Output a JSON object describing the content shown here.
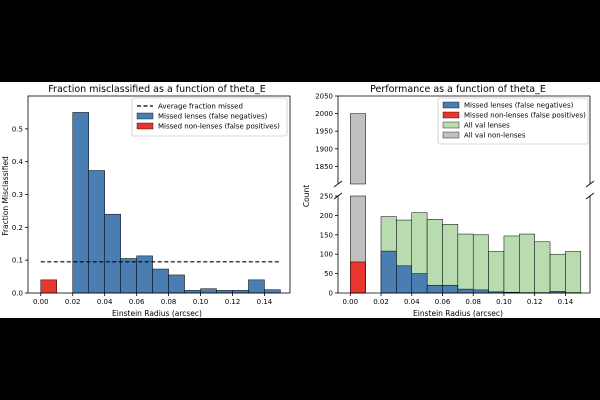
{
  "chart_data": [
    {
      "type": "bar",
      "title": "Fraction misclassified as a function of theta_E",
      "xlabel": "Einstein Radius (arcsec)",
      "ylabel": "Fraction Misclassified",
      "xlim": [
        -0.008,
        0.156
      ],
      "ylim": [
        0,
        0.6
      ],
      "xticks": [
        "0.00",
        "0.02",
        "0.04",
        "0.06",
        "0.08",
        "0.10",
        "0.12",
        "0.14"
      ],
      "xtick_values": [
        0,
        0.02,
        0.04,
        0.06,
        0.08,
        0.1,
        0.12,
        0.14
      ],
      "yticks": [
        "0.0",
        "0.1",
        "0.2",
        "0.3",
        "0.4",
        "0.5"
      ],
      "ytick_values": [
        0,
        0.1,
        0.2,
        0.3,
        0.4,
        0.5
      ],
      "bin_width": 0.01,
      "series": [
        {
          "name": "Missed lenses (false negatives)",
          "color": "#4a7eb3",
          "bin_starts": [
            0.02,
            0.03,
            0.04,
            0.05,
            0.06,
            0.07,
            0.08,
            0.09,
            0.1,
            0.11,
            0.12,
            0.13,
            0.14
          ],
          "values": [
            0.55,
            0.373,
            0.24,
            0.105,
            0.113,
            0.073,
            0.055,
            0.008,
            0.013,
            0.008,
            0.008,
            0.04,
            0.01
          ]
        },
        {
          "name": "Missed non-lenses (false positives)",
          "color": "#e8372e",
          "bin_starts": [
            0.0
          ],
          "values": [
            0.04
          ]
        }
      ],
      "hline": {
        "name": "Average fraction missed",
        "value": 0.095,
        "x_range": [
          0.0,
          0.15
        ]
      },
      "legend": "top-right"
    },
    {
      "type": "bar",
      "title": "Performance as a function of theta_E",
      "xlabel": "Einstein Radius (arcsec)",
      "ylabel": "Count",
      "xlim": [
        -0.008,
        0.156
      ],
      "broken_axis": true,
      "ylim_top": [
        1800,
        2050
      ],
      "ylim_bottom": [
        0,
        250
      ],
      "yticks_top": [
        "1850",
        "1900",
        "1950",
        "2000",
        "2050"
      ],
      "ytick_values_top": [
        1850,
        1900,
        1950,
        2000,
        2050
      ],
      "yticks_bottom": [
        "0",
        "50",
        "100",
        "150",
        "200",
        "250"
      ],
      "ytick_values_bottom": [
        0,
        50,
        100,
        150,
        200,
        250
      ],
      "xticks": [
        "0.00",
        "0.02",
        "0.04",
        "0.06",
        "0.08",
        "0.10",
        "0.12",
        "0.14"
      ],
      "xtick_values": [
        0,
        0.02,
        0.04,
        0.06,
        0.08,
        0.1,
        0.12,
        0.14
      ],
      "bin_width": 0.01,
      "series": [
        {
          "name": "Missed lenses (false negatives)",
          "color": "#4a7eb3",
          "bin_starts": [
            0.02,
            0.03,
            0.04,
            0.05,
            0.06,
            0.07,
            0.08,
            0.09,
            0.1,
            0.11,
            0.12,
            0.13,
            0.14
          ],
          "values": [
            108,
            70,
            50,
            20,
            20,
            10,
            8,
            3,
            2,
            1,
            1,
            4,
            1
          ]
        },
        {
          "name": "Missed non-lenses (false positives)",
          "color": "#e8372e",
          "bin_starts": [
            0.0
          ],
          "values": [
            80
          ]
        },
        {
          "name": "All val lenses",
          "color": "#b8dbb0",
          "bin_starts": [
            0.02,
            0.03,
            0.04,
            0.05,
            0.06,
            0.07,
            0.08,
            0.09,
            0.1,
            0.11,
            0.12,
            0.13,
            0.14
          ],
          "values": [
            197,
            188,
            207,
            190,
            177,
            152,
            150,
            107,
            147,
            152,
            132,
            100,
            107
          ]
        },
        {
          "name": "All val non-lenses",
          "color": "#c0c0c0",
          "bin_starts": [
            0.0
          ],
          "values": [
            2000
          ]
        }
      ],
      "legend": "top-right"
    }
  ]
}
